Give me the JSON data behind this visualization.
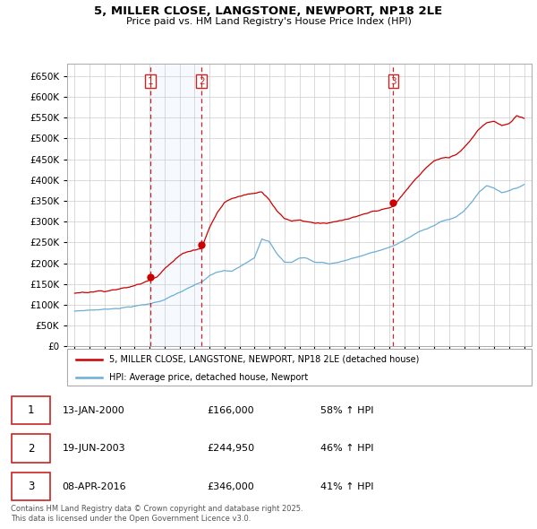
{
  "title_line1": "5, MILLER CLOSE, LANGSTONE, NEWPORT, NP18 2LE",
  "title_line2": "Price paid vs. HM Land Registry's House Price Index (HPI)",
  "legend_entry1": "5, MILLER CLOSE, LANGSTONE, NEWPORT, NP18 2LE (detached house)",
  "legend_entry2": "HPI: Average price, detached house, Newport",
  "footer_line1": "Contains HM Land Registry data © Crown copyright and database right 2025.",
  "footer_line2": "This data is licensed under the Open Government Licence v3.0.",
  "transactions": [
    {
      "num": 1,
      "date": "13-JAN-2000",
      "price": "£166,000",
      "change": "58% ↑ HPI"
    },
    {
      "num": 2,
      "date": "19-JUN-2003",
      "price": "£244,950",
      "change": "46% ↑ HPI"
    },
    {
      "num": 3,
      "date": "08-APR-2016",
      "price": "£346,000",
      "change": "41% ↑ HPI"
    }
  ],
  "vline_dates": [
    2000.04,
    2003.47,
    2016.27
  ],
  "sale_prices": [
    166000,
    244950,
    346000
  ],
  "sale_years": [
    2000.04,
    2003.47,
    2016.27
  ],
  "hpi_color": "#6baed6",
  "price_color": "#cc0000",
  "vline_color": "#cc2222",
  "shade_color": "#ddeeff",
  "bg_color": "#ffffff",
  "grid_color": "#cccccc",
  "ylim": [
    0,
    680000
  ],
  "yticks": [
    0,
    50000,
    100000,
    150000,
    200000,
    250000,
    300000,
    350000,
    400000,
    450000,
    500000,
    550000,
    600000,
    650000
  ],
  "xlim": [
    1994.5,
    2025.5
  ],
  "xticks": [
    1995,
    1996,
    1997,
    1998,
    1999,
    2000,
    2001,
    2002,
    2003,
    2004,
    2005,
    2006,
    2007,
    2008,
    2009,
    2010,
    2011,
    2012,
    2013,
    2014,
    2015,
    2016,
    2017,
    2018,
    2019,
    2020,
    2021,
    2022,
    2023,
    2024,
    2025
  ]
}
